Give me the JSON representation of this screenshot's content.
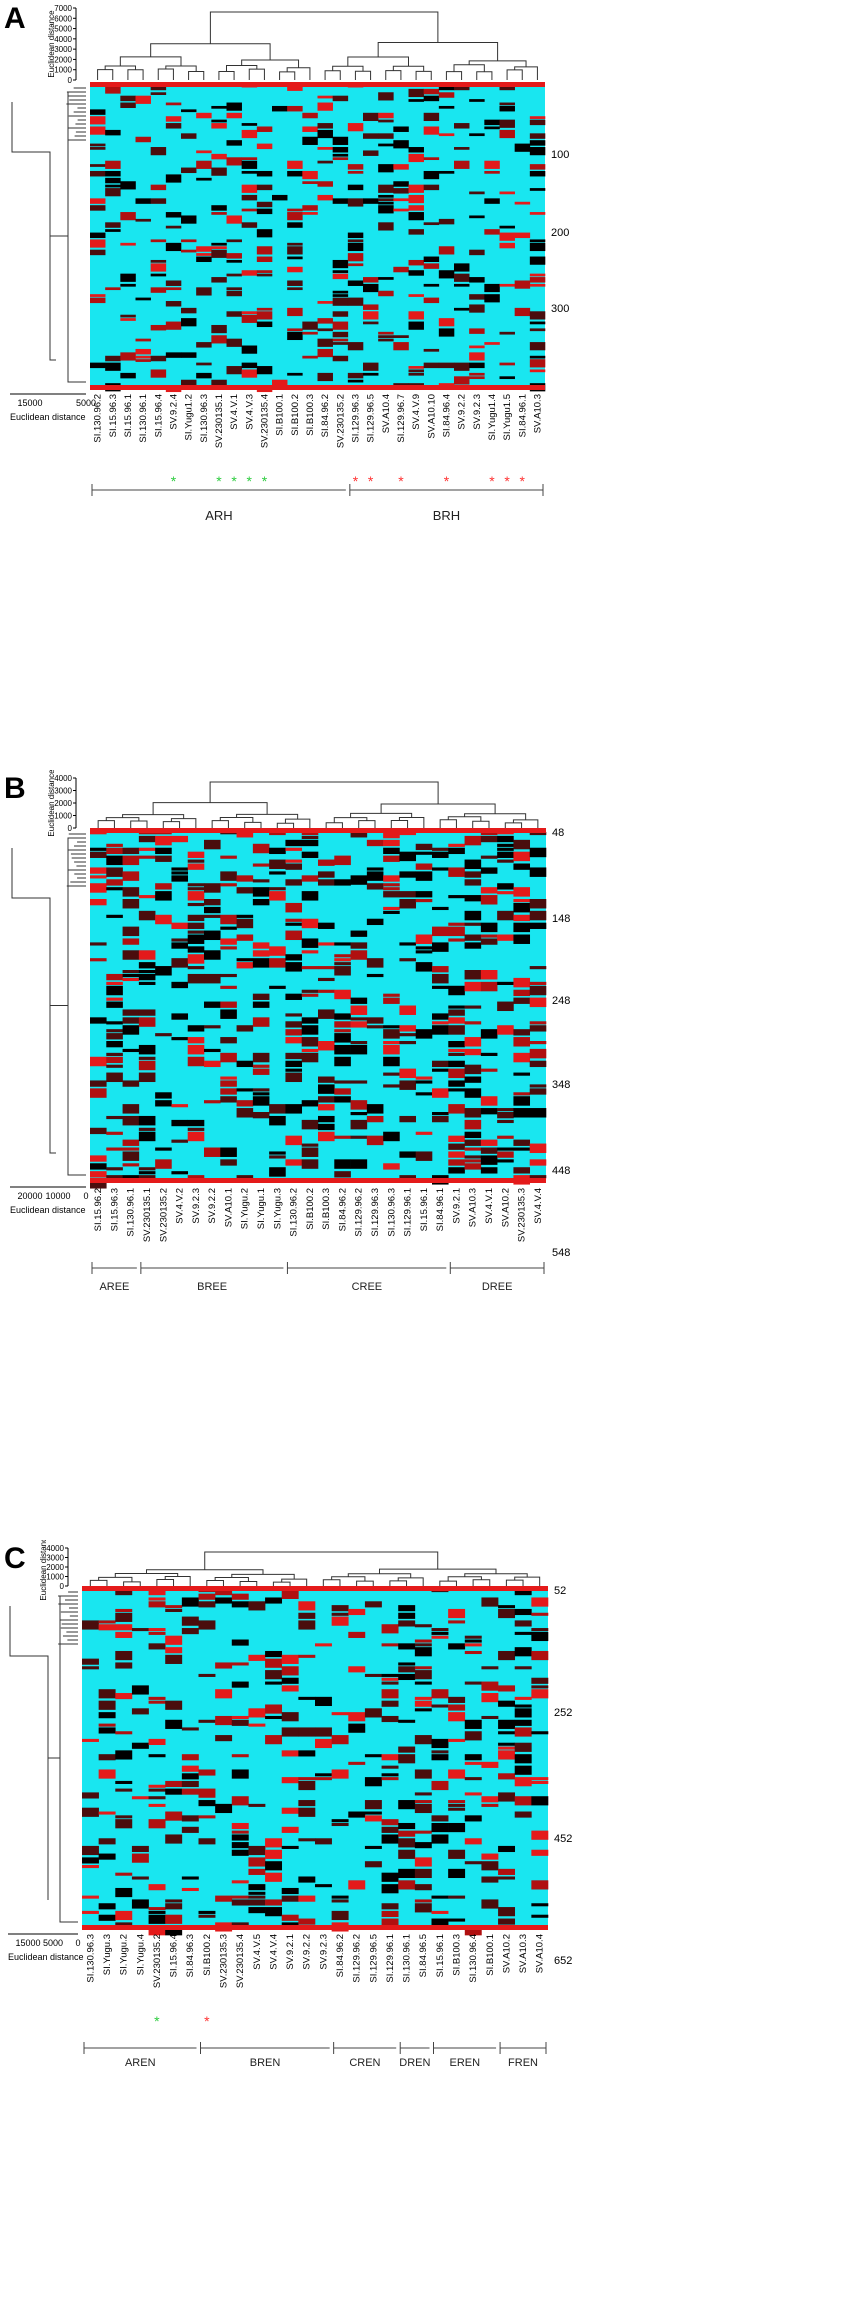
{
  "panels": [
    {
      "id": "A",
      "letter": "A",
      "top_axis_label": "Euclidean distance",
      "top_ticks": [
        "7000",
        "6000",
        "5000",
        "4000",
        "3000",
        "2000",
        "1000",
        "0"
      ],
      "left_axis_label": "Euclidean distance",
      "left_ticks": [
        "15000",
        "5000"
      ],
      "row_ticks": [
        "100",
        "200",
        "300"
      ],
      "columns": [
        "SI.130.96.2",
        "SI.15.96.3",
        "SI.15.96.1",
        "SI.130.96.1",
        "SI.15.96.4",
        "SV.9.2.4",
        "SI.Yugu1.2",
        "SI.130.96.3",
        "SV.230135.1",
        "SV.4.V.1",
        "SV.4.V.3",
        "SV.230135.4",
        "SI.B100.1",
        "SI.B100.2",
        "SI.B100.3",
        "SI.84.96.2",
        "SV.230135.2",
        "SI.129.96.3",
        "SI.129.96.5",
        "SV.A10.4",
        "SI.129.96.7",
        "SV.4.V.9",
        "SV.A10.10",
        "SI.84.96.4",
        "SV.9.2.2",
        "SV.9.2.3",
        "SI.Yugu1.4",
        "SI.Yugu1.5",
        "SI.84.96.1",
        "SV.A10.3"
      ],
      "markers": [
        {
          "col": 5,
          "color": "#2ecc40",
          "symbol": "*"
        },
        {
          "col": 8,
          "color": "#2ecc40",
          "symbol": "*"
        },
        {
          "col": 9,
          "color": "#2ecc40",
          "symbol": "*"
        },
        {
          "col": 10,
          "color": "#2ecc40",
          "symbol": "*"
        },
        {
          "col": 11,
          "color": "#2ecc40",
          "symbol": "*"
        },
        {
          "col": 17,
          "color": "#ff3333",
          "symbol": "*"
        },
        {
          "col": 18,
          "color": "#ff3333",
          "symbol": "*"
        },
        {
          "col": 20,
          "color": "#ff3333",
          "symbol": "*"
        },
        {
          "col": 23,
          "color": "#ff3333",
          "symbol": "*"
        },
        {
          "col": 26,
          "color": "#ff3333",
          "symbol": "*"
        },
        {
          "col": 27,
          "color": "#ff3333",
          "symbol": "*"
        },
        {
          "col": 28,
          "color": "#ff3333",
          "symbol": "*"
        }
      ],
      "groups": [
        {
          "label": "ARH",
          "from": 0,
          "to": 16
        },
        {
          "label": "BRH",
          "from": 17,
          "to": 29
        }
      ]
    },
    {
      "id": "B",
      "letter": "B",
      "top_axis_label": "Euclidean distance",
      "top_ticks": [
        "4000",
        "3000",
        "2000",
        "1000",
        "0"
      ],
      "left_axis_label": "Euclidean distance",
      "left_ticks": [
        "20000",
        "10000",
        "0"
      ],
      "row_ticks": [
        "48",
        "148",
        "248",
        "348",
        "448",
        "548"
      ],
      "columns": [
        "SI.15.96.2",
        "SI.15.96.3",
        "SI.130.96.1",
        "SV.230135.1",
        "SV.230135.2",
        "SV.4.V.2",
        "SV.9.2.3",
        "SV.9.2.2",
        "SV.A10.1",
        "SI.Yugu.2",
        "SI.Yugu.1",
        "SI.Yugu.3",
        "SI.130.96.2",
        "SI.B100.2",
        "SI.B100.3",
        "SI.84.96.2",
        "SI.129.96.2",
        "SI.129.96.3",
        "SI.130.96.3",
        "SI.129.96.1",
        "SI.15.96.1",
        "SI.84.96.1",
        "SV.9.2.1",
        "SV.A10.3",
        "SV.4.V.1",
        "SV.A10.2",
        "SV.230135.3",
        "SV.4.V.4"
      ],
      "markers": [],
      "groups": [
        {
          "label": "AREE",
          "from": 0,
          "to": 2
        },
        {
          "label": "BREE",
          "from": 3,
          "to": 11
        },
        {
          "label": "CREE",
          "from": 12,
          "to": 21
        },
        {
          "label": "DREE",
          "from": 22,
          "to": 27
        }
      ]
    },
    {
      "id": "C",
      "letter": "C",
      "top_axis_label": "Euclidean distance",
      "top_ticks": [
        "4000",
        "3000",
        "2000",
        "1000",
        "0"
      ],
      "left_axis_label": "Euclidean distance",
      "left_ticks": [
        "15000",
        "5000",
        "0"
      ],
      "row_ticks": [
        "52",
        "252",
        "452",
        "652"
      ],
      "columns": [
        "SI.130.96.3",
        "SI.Yugu.3",
        "SI.Yugu.2",
        "SI.Yugu.4",
        "SV.230135.2",
        "SI.15.96.4",
        "SI.84.96.3",
        "SI.B100.2",
        "SV.230135.3",
        "SV.230135.4",
        "SV.4.V.5",
        "SV.4.V.4",
        "SV.9.2.1",
        "SV.9.2.2",
        "SV.9.2.3",
        "SI.84.96.2",
        "SI.129.96.2",
        "SI.129.96.5",
        "SI.129.96.1",
        "SI.130.96.1",
        "SI.84.96.5",
        "SI.15.96.1",
        "SI.B100.3",
        "SI.130.96.4",
        "SI.B100.1",
        "SV.A10.2",
        "SV.A10.3",
        "SV.A10.4"
      ],
      "markers": [
        {
          "col": 4,
          "color": "#2ecc40",
          "symbol": "*"
        },
        {
          "col": 7,
          "color": "#ff3333",
          "symbol": "*"
        }
      ],
      "groups": [
        {
          "label": "AREN",
          "from": 0,
          "to": 6
        },
        {
          "label": "BREN",
          "from": 7,
          "to": 14
        },
        {
          "label": "CREN",
          "from": 15,
          "to": 18
        },
        {
          "label": "DREN",
          "from": 19,
          "to": 20
        },
        {
          "label": "EREN",
          "from": 21,
          "to": 24
        },
        {
          "label": "FREN",
          "from": 25,
          "to": 27
        }
      ]
    }
  ]
}
